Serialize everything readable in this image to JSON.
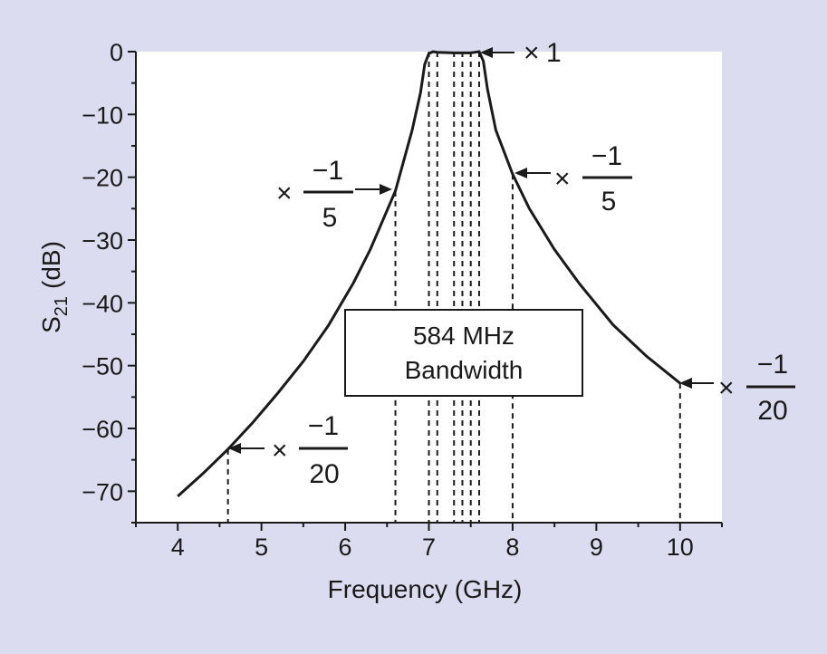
{
  "chart_data": {
    "type": "line",
    "title": "",
    "xlabel": "Frequency (GHz)",
    "ylabel": {
      "main": "S",
      "sub": "21",
      "unit": "(dB)"
    },
    "xlim": [
      3.5,
      10.5
    ],
    "ylim": [
      -75,
      0
    ],
    "xticks": [
      "4",
      "5",
      "6",
      "7",
      "8",
      "9",
      "10"
    ],
    "yticks": [
      "0",
      "−10",
      "−20",
      "−30",
      "−40",
      "−50",
      "−60",
      "−70"
    ],
    "grid": false,
    "colors": {
      "background": "#dcdcf0",
      "plot": "#ffffff",
      "line": "#1a1a1a"
    },
    "series": [
      {
        "x": [
          4.0,
          4.3,
          4.6,
          4.9,
          5.2,
          5.5,
          5.8,
          6.1,
          6.3,
          6.6,
          6.8,
          6.9,
          6.95,
          7.0,
          7.05,
          7.1,
          7.3,
          7.5,
          7.55,
          7.6,
          7.65,
          7.7,
          7.8,
          8.0,
          8.2,
          8.5,
          8.8,
          9.2,
          9.6,
          10.0
        ],
        "y": [
          -70.8,
          -67.2,
          -63.3,
          -59.0,
          -54.3,
          -49.3,
          -43.6,
          -36.8,
          -31.5,
          -22.2,
          -12.5,
          -6.5,
          -2.0,
          -0.3,
          0.0,
          -0.1,
          -0.2,
          -0.2,
          -0.1,
          0.0,
          -1.5,
          -6.0,
          -12.5,
          -19.5,
          -25.0,
          -31.5,
          -37.0,
          -43.5,
          -48.5,
          -52.8
        ]
      }
    ],
    "passband_markers_x": [
      7.0,
      7.1,
      7.3,
      7.4,
      7.5,
      7.6
    ],
    "dashed_markers": [
      {
        "x": 4.6,
        "y": -63.3
      },
      {
        "x": 6.6,
        "y": -22.2
      },
      {
        "x": 8.0,
        "y": -19.5
      },
      {
        "x": 10.0,
        "y": -52.8
      }
    ],
    "annotations": {
      "top": {
        "mult": "×",
        "value": "1"
      },
      "left_20": {
        "mult": "×",
        "num": "−1",
        "den": "20"
      },
      "left_5": {
        "mult": "×",
        "num": "−1",
        "den": "5"
      },
      "right_5": {
        "mult": "×",
        "num": "−1",
        "den": "5"
      },
      "right_20": {
        "mult": "×",
        "num": "−1",
        "den": "20"
      }
    },
    "box": {
      "line1": "584 MHz",
      "line2": "Bandwidth"
    }
  }
}
